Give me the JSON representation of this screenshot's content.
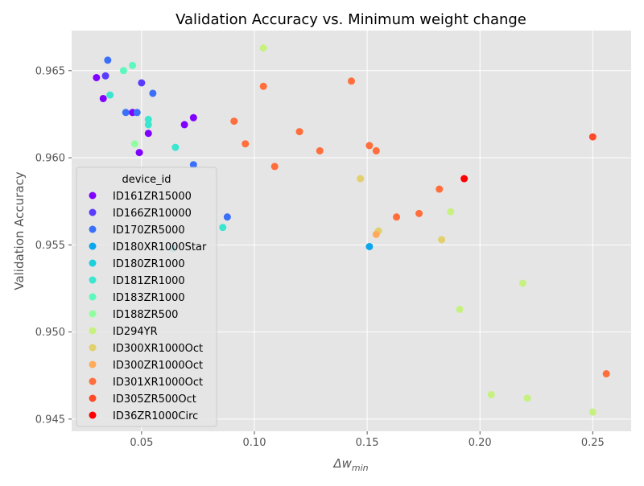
{
  "chart_data": {
    "type": "scatter",
    "title": "Validation Accuracy vs. Minimum weight change",
    "xlabel": "Δw",
    "xlabel_sub": "min",
    "ylabel": "Validation Accuracy",
    "xlim": [
      0.019,
      0.267
    ],
    "ylim": [
      0.9443,
      0.9673
    ],
    "xticks": [
      0.05,
      0.1,
      0.15,
      0.2,
      0.25
    ],
    "xtick_labels": [
      "0.05",
      "0.10",
      "0.15",
      "0.20",
      "0.25"
    ],
    "yticks": [
      0.945,
      0.95,
      0.955,
      0.96,
      0.965
    ],
    "ytick_labels": [
      "0.945",
      "0.950",
      "0.955",
      "0.960",
      "0.965"
    ],
    "grid": true,
    "legend_title": "device_id",
    "legend_position": "lower-left",
    "series": [
      {
        "name": "ID161ZR15000",
        "color": "#8000ff",
        "points": [
          [
            0.03,
            0.9646
          ],
          [
            0.033,
            0.9634
          ],
          [
            0.046,
            0.9626
          ],
          [
            0.049,
            0.9603
          ],
          [
            0.053,
            0.9614
          ],
          [
            0.069,
            0.9619
          ],
          [
            0.073,
            0.9623
          ]
        ]
      },
      {
        "name": "ID166ZR10000",
        "color": "#5a3cfe",
        "points": [
          [
            0.034,
            0.9647
          ],
          [
            0.05,
            0.9643
          ]
        ]
      },
      {
        "name": "ID170ZR5000",
        "color": "#3a70f9",
        "points": [
          [
            0.035,
            0.9656
          ],
          [
            0.043,
            0.9626
          ],
          [
            0.048,
            0.9626
          ],
          [
            0.055,
            0.9637
          ],
          [
            0.073,
            0.9596
          ],
          [
            0.088,
            0.9566
          ]
        ]
      },
      {
        "name": "ID180XR1000Star",
        "color": "#0aa7ef",
        "points": [
          [
            0.151,
            0.9549
          ]
        ]
      },
      {
        "name": "ID180ZR1000",
        "color": "#1ccfdd",
        "points": [
          [
            0.064,
            0.9548
          ]
        ]
      },
      {
        "name": "ID181ZR1000",
        "color": "#3ae6d0",
        "points": [
          [
            0.036,
            0.9636
          ],
          [
            0.053,
            0.9622
          ],
          [
            0.053,
            0.9619
          ],
          [
            0.065,
            0.9606
          ],
          [
            0.086,
            0.956
          ]
        ]
      },
      {
        "name": "ID183ZR1000",
        "color": "#5cf8be",
        "points": [
          [
            0.042,
            0.965
          ],
          [
            0.046,
            0.9653
          ]
        ]
      },
      {
        "name": "ID188ZR500",
        "color": "#90fea0",
        "points": [
          [
            0.047,
            0.9608
          ]
        ]
      },
      {
        "name": "ID294YR",
        "color": "#c6f181",
        "points": [
          [
            0.104,
            0.9663
          ],
          [
            0.187,
            0.9569
          ],
          [
            0.191,
            0.9513
          ],
          [
            0.205,
            0.9464
          ],
          [
            0.219,
            0.9528
          ],
          [
            0.221,
            0.9462
          ],
          [
            0.25,
            0.9454
          ]
        ]
      },
      {
        "name": "ID300XR1000Oct",
        "color": "#e1d06c",
        "points": [
          [
            0.147,
            0.9588
          ],
          [
            0.155,
            0.9558
          ],
          [
            0.183,
            0.9553
          ]
        ]
      },
      {
        "name": "ID300ZR1000Oct",
        "color": "#ffab5a",
        "points": [
          [
            0.154,
            0.9556
          ]
        ]
      },
      {
        "name": "ID301XR1000Oct",
        "color": "#ff6e3b",
        "points": [
          [
            0.091,
            0.9621
          ],
          [
            0.096,
            0.9608
          ],
          [
            0.104,
            0.9641
          ],
          [
            0.109,
            0.9595
          ],
          [
            0.12,
            0.9615
          ],
          [
            0.129,
            0.9604
          ],
          [
            0.143,
            0.9644
          ],
          [
            0.151,
            0.9607
          ],
          [
            0.154,
            0.9604
          ],
          [
            0.163,
            0.9566
          ],
          [
            0.173,
            0.9568
          ],
          [
            0.182,
            0.9582
          ],
          [
            0.256,
            0.9476
          ]
        ]
      },
      {
        "name": "ID305ZR500Oct",
        "color": "#ff4a2a",
        "points": [
          [
            0.25,
            0.9612
          ]
        ]
      },
      {
        "name": "ID36ZR1000Circ",
        "color": "#ff0000",
        "points": [
          [
            0.193,
            0.9588
          ]
        ]
      }
    ]
  }
}
